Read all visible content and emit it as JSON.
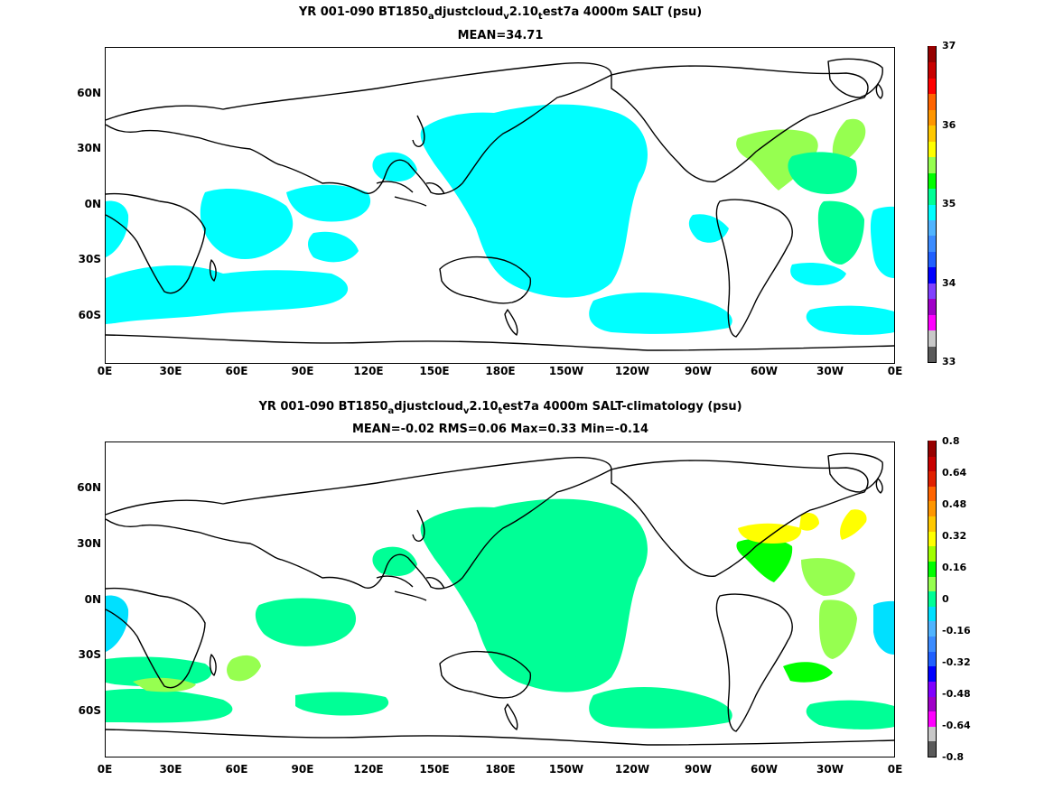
{
  "panels": [
    {
      "title_line1": {
        "pre": "YR 001-090 BT1850",
        "s1": "a",
        "mid1": "djustcloud",
        "s2": "v",
        "mid2": "2.10",
        "s3": "t",
        "post": "est7a 4000m SALT (psu)"
      },
      "title_line2": "MEAN=34.71",
      "colorbar": {
        "tick_labels": [
          "37",
          "36",
          "35",
          "34",
          "33"
        ],
        "colors": [
          "#5a5a5a",
          "#c8c8c8",
          "#ff00ff",
          "#a000c8",
          "#8040ff",
          "#0000ff",
          "#2060ff",
          "#3c8cff",
          "#50b4ff",
          "#00ffff",
          "#00ff96",
          "#00ff00",
          "#96ff50",
          "#ffff00",
          "#ffc800",
          "#ff9600",
          "#ff6400",
          "#ff0000",
          "#c80000",
          "#960000"
        ]
      }
    },
    {
      "title_line1": {
        "pre": "YR 001-090 BT1850",
        "s1": "a",
        "mid1": "djustcloud",
        "s2": "v",
        "mid2": "2.10",
        "s3": "t",
        "post": "est7a 4000m SALT-climatology (psu)"
      },
      "title_line2": "MEAN=-0.02   RMS=0.06   Max=0.33   Min=-0.14",
      "colorbar": {
        "tick_labels": [
          "0.8",
          "0.64",
          "0.48",
          "0.32",
          "0.16",
          "0",
          "-0.16",
          "-0.32",
          "-0.48",
          "-0.64",
          "-0.8"
        ],
        "colors": [
          "#5a5a5a",
          "#c8c8c8",
          "#ff00ff",
          "#a000c8",
          "#8000ff",
          "#0000ff",
          "#2060ff",
          "#3c8cff",
          "#50b4ff",
          "#00e0ff",
          "#00ff96",
          "#96ff50",
          "#00ff00",
          "#a0ff00",
          "#ffff00",
          "#ffc800",
          "#ff9600",
          "#ff6400",
          "#e02000",
          "#c80000",
          "#960000"
        ]
      }
    }
  ],
  "axes": {
    "x_labels": [
      "0E",
      "30E",
      "60E",
      "90E",
      "120E",
      "150E",
      "180E",
      "150W",
      "120W",
      "90W",
      "60W",
      "30W",
      "0E"
    ],
    "y_labels": [
      "60N",
      "30N",
      "0N",
      "30S",
      "60S"
    ]
  },
  "map_colors": {
    "land": "#ffffff",
    "coast": "#000000",
    "top_fill_main": "#00ffff",
    "top_fill_high": "#96ff50",
    "top_fill_mid": "#00ff96",
    "bottom_fill_main": "#00ff96",
    "bottom_fill_pos": "#96ff50",
    "bottom_fill_high": "#00ff00",
    "bottom_fill_max": "#ffff00",
    "bottom_fill_neg": "#00e0ff"
  }
}
